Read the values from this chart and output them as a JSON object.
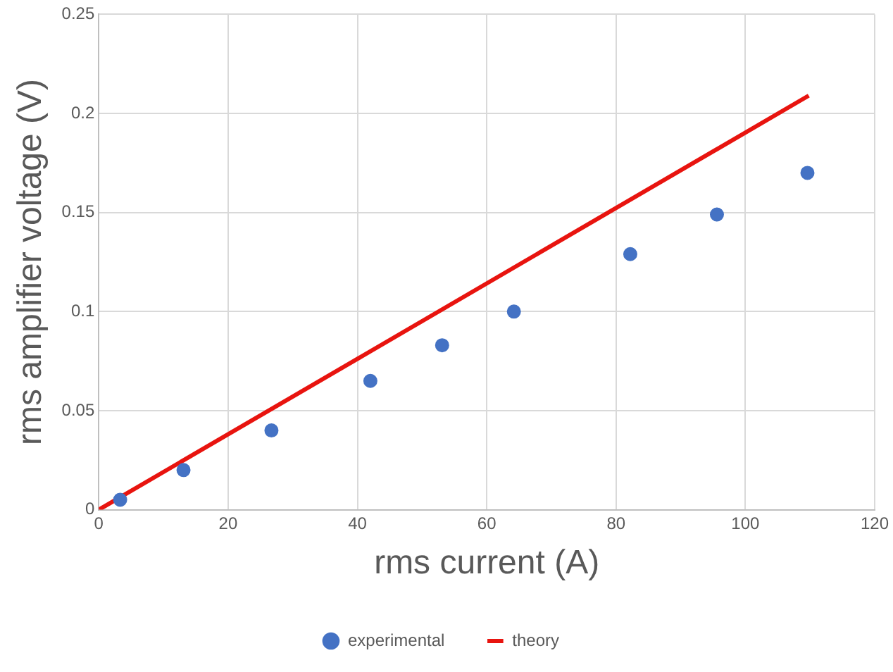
{
  "chart_data": {
    "type": "scatter",
    "xlabel": "rms current (A)",
    "ylabel": "rms amplifier voltage (V)",
    "xlim": [
      0,
      120
    ],
    "xticks": [
      0,
      20,
      40,
      60,
      80,
      100,
      120
    ],
    "ylim": [
      0,
      0.25
    ],
    "yticks": [
      0,
      0.05,
      0.1,
      0.15,
      0.2,
      0.25
    ],
    "grid": true,
    "legend": "bottom",
    "series": [
      {
        "name": "experimental",
        "color": "#4472c4",
        "marker": "circle",
        "x": [
          3.3,
          13.1,
          26.7,
          42,
          53.1,
          64.2,
          82.2,
          95.6,
          109.6
        ],
        "values": [
          0.005,
          0.02,
          0.04,
          0.065,
          0.083,
          0.1,
          0.129,
          0.149,
          0.17
        ]
      },
      {
        "name": "theory",
        "type": "line",
        "color": "#e8140f",
        "marker": "none",
        "line_style": "solid",
        "x": [
          0,
          109.8
        ],
        "values": [
          0,
          0.209
        ]
      }
    ]
  }
}
